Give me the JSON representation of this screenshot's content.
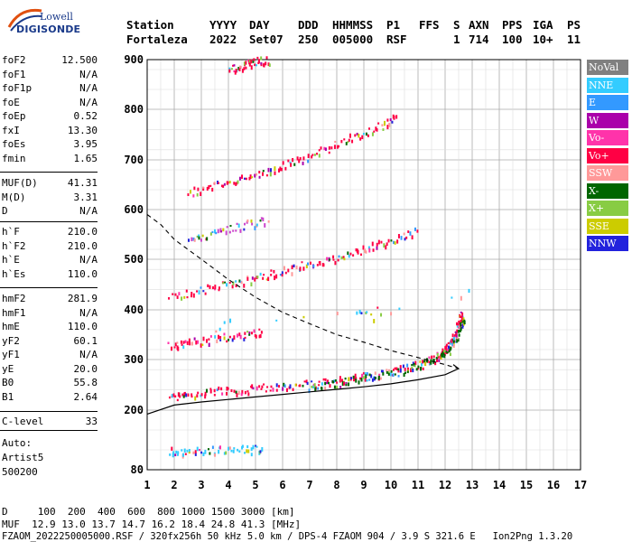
{
  "logo": {
    "line1": "Lowell",
    "line2": "DIGISONDE"
  },
  "header": {
    "labels": [
      "Station",
      "YYYY",
      "DAY",
      "DDD",
      "HHMMSS",
      "P1",
      "FFS",
      "S",
      "AXN",
      "PPS",
      "IGA",
      "PS"
    ],
    "values": [
      "Fortaleza",
      "2022",
      "Set07",
      "250",
      "005000",
      "RSF",
      "1",
      "714",
      "100",
      "10+",
      "11"
    ]
  },
  "params_group1": [
    {
      "k": "foF2",
      "v": "12.500"
    },
    {
      "k": "foF1",
      "v": "N/A"
    },
    {
      "k": "foF1p",
      "v": "N/A"
    },
    {
      "k": "foE",
      "v": "N/A"
    },
    {
      "k": "foEp",
      "v": "0.52"
    },
    {
      "k": "fxI",
      "v": "13.30"
    },
    {
      "k": "foEs",
      "v": "3.95"
    },
    {
      "k": "fmin",
      "v": "1.65"
    }
  ],
  "params_group2": [
    {
      "k": "MUF(D)",
      "v": "41.31"
    },
    {
      "k": "M(D)",
      "v": "3.31"
    },
    {
      "k": "D",
      "v": "N/A"
    }
  ],
  "params_group3": [
    {
      "k": "h`F",
      "v": "210.0"
    },
    {
      "k": "h`F2",
      "v": "210.0"
    },
    {
      "k": "h`E",
      "v": "N/A"
    },
    {
      "k": "h`Es",
      "v": "110.0"
    }
  ],
  "params_group4": [
    {
      "k": "hmF2",
      "v": "281.9"
    },
    {
      "k": "hmF1",
      "v": "N/A"
    },
    {
      "k": "hmE",
      "v": "110.0"
    },
    {
      "k": "yF2",
      "v": "60.1"
    },
    {
      "k": "yF1",
      "v": "N/A"
    },
    {
      "k": "yE",
      "v": "20.0"
    },
    {
      "k": "B0",
      "v": "55.8"
    },
    {
      "k": "B1",
      "v": "2.64"
    }
  ],
  "params_group5": [
    {
      "k": "C-level",
      "v": "33"
    }
  ],
  "auto": {
    "l1": "Auto:",
    "l2": "Artist5",
    "l3": "500200"
  },
  "legend": [
    {
      "name": "NoVal",
      "bg": "#808080",
      "fg": "#ffffff"
    },
    {
      "name": "NNE",
      "bg": "#33ccff",
      "fg": "#ffffff"
    },
    {
      "name": "E",
      "bg": "#3399ff",
      "fg": "#ffffff"
    },
    {
      "name": "W",
      "bg": "#aa00aa",
      "fg": "#ffffff"
    },
    {
      "name": "Vo-",
      "bg": "#ff33aa",
      "fg": "#ffffff"
    },
    {
      "name": "Vo+",
      "bg": "#ff0044",
      "fg": "#ffffff"
    },
    {
      "name": "SSW",
      "bg": "#ff9999",
      "fg": "#ffffff"
    },
    {
      "name": "X-",
      "bg": "#006600",
      "fg": "#ffffff"
    },
    {
      "name": "X+",
      "bg": "#88cc44",
      "fg": "#ffffff"
    },
    {
      "name": "SSE",
      "bg": "#cccc00",
      "fg": "#ffffff"
    },
    {
      "name": "NNW",
      "bg": "#2222dd",
      "fg": "#ffffff"
    }
  ],
  "bottom": {
    "d_line": "D     100  200  400  600  800 1000 1500 3000 [km]",
    "muf_line": "MUF  12.9 13.0 13.7 14.7 16.2 18.4 24.8 41.3 [MHz]",
    "file_line": "FZAOM_2022250005000.RSF / 320fx256h 50 kHz 5.0 km / DPS-4 FZAOM 904 / 3.9 S 321.6 E   Ion2Png 1.3.20"
  },
  "chart_data": {
    "type": "scatter",
    "xlim": [
      1,
      17
    ],
    "ylim": [
      80,
      900
    ],
    "x_ticks": [
      1,
      2,
      3,
      4,
      5,
      6,
      7,
      8,
      9,
      10,
      11,
      12,
      13,
      14,
      15,
      16,
      17
    ],
    "y_ticks": [
      80,
      200,
      300,
      400,
      500,
      600,
      700,
      800,
      900
    ],
    "grid": true,
    "traces": [
      {
        "name": "F2 O-trace",
        "color": "#ff0044",
        "points": [
          [
            1.8,
            228
          ],
          [
            2.5,
            232
          ],
          [
            3.5,
            238
          ],
          [
            4.5,
            242
          ],
          [
            5.5,
            246
          ],
          [
            6.5,
            250
          ],
          [
            7.5,
            256
          ],
          [
            8.5,
            264
          ],
          [
            9.5,
            274
          ],
          [
            10.5,
            284
          ],
          [
            11.3,
            296
          ],
          [
            11.8,
            312
          ],
          [
            12.1,
            330
          ],
          [
            12.3,
            350
          ],
          [
            12.5,
            380
          ],
          [
            12.6,
            395
          ]
        ]
      },
      {
        "name": "F2 X-trace",
        "color": "#006600",
        "points": [
          [
            7.0,
            248
          ],
          [
            8.0,
            255
          ],
          [
            9.0,
            264
          ],
          [
            10.0,
            274
          ],
          [
            11.0,
            288
          ],
          [
            11.8,
            305
          ],
          [
            12.2,
            325
          ],
          [
            12.5,
            355
          ],
          [
            12.7,
            385
          ]
        ]
      },
      {
        "name": "2nd multiple",
        "color": "#ff0044",
        "points": [
          [
            1.8,
            330
          ],
          [
            2.5,
            335
          ],
          [
            3.5,
            343
          ],
          [
            4.5,
            350
          ],
          [
            5.3,
            358
          ]
        ]
      },
      {
        "name": "3rd multiple",
        "color": "#ff0044",
        "points": [
          [
            1.8,
            425
          ],
          [
            3,
            440
          ],
          [
            4,
            452
          ],
          [
            5,
            465
          ],
          [
            6,
            478
          ],
          [
            7,
            492
          ],
          [
            8,
            505
          ],
          [
            9,
            522
          ],
          [
            10,
            540
          ],
          [
            11,
            560
          ]
        ]
      },
      {
        "name": "4th multiple",
        "color": "#cc44cc",
        "points": [
          [
            2.5,
            540
          ],
          [
            3.5,
            555
          ],
          [
            4.5,
            570
          ],
          [
            5.5,
            580
          ]
        ]
      },
      {
        "name": "5th multiple",
        "color": "#ff0044",
        "points": [
          [
            2.5,
            635
          ],
          [
            3.5,
            650
          ],
          [
            4.5,
            665
          ],
          [
            5.5,
            680
          ],
          [
            6.5,
            700
          ],
          [
            7.5,
            720
          ],
          [
            8.5,
            745
          ],
          [
            9.5,
            765
          ],
          [
            10.2,
            785
          ]
        ]
      },
      {
        "name": "6th multiple",
        "color": "#ff0044",
        "points": [
          [
            4.0,
            880
          ],
          [
            4.5,
            890
          ],
          [
            5.0,
            898
          ],
          [
            5.5,
            900
          ]
        ]
      },
      {
        "name": "Es trace",
        "color": "#33ccff",
        "points": [
          [
            1.8,
            118
          ],
          [
            2.5,
            120
          ],
          [
            3.5,
            121
          ],
          [
            4.5,
            122
          ],
          [
            5.3,
            122
          ]
        ]
      },
      {
        "name": "scatter",
        "color": "#33ccff",
        "points": [
          [
            8.7,
            390
          ],
          [
            9.0,
            400
          ],
          [
            9.3,
            385
          ],
          [
            10.3,
            402
          ],
          [
            3.5,
            365
          ],
          [
            4.0,
            375
          ],
          [
            12.2,
            420
          ],
          [
            13.2,
            440
          ]
        ]
      }
    ],
    "profile_solid": [
      [
        1.0,
        192
      ],
      [
        2,
        210
      ],
      [
        3,
        216
      ],
      [
        4,
        221
      ],
      [
        5,
        226
      ],
      [
        6,
        231
      ],
      [
        7,
        236
      ],
      [
        8,
        241
      ],
      [
        9,
        246
      ],
      [
        10,
        252
      ],
      [
        11,
        260
      ],
      [
        12,
        270
      ],
      [
        12.5,
        282
      ],
      [
        12.3,
        290
      ]
    ],
    "profile_dashed": [
      [
        1.0,
        590
      ],
      [
        1.5,
        570
      ],
      [
        2,
        540
      ],
      [
        3,
        500
      ],
      [
        4,
        460
      ],
      [
        5,
        425
      ],
      [
        6,
        395
      ],
      [
        7,
        372
      ],
      [
        8,
        350
      ],
      [
        9,
        335
      ],
      [
        10,
        318
      ],
      [
        11,
        304
      ],
      [
        12,
        290
      ],
      [
        12.5,
        282
      ]
    ]
  }
}
